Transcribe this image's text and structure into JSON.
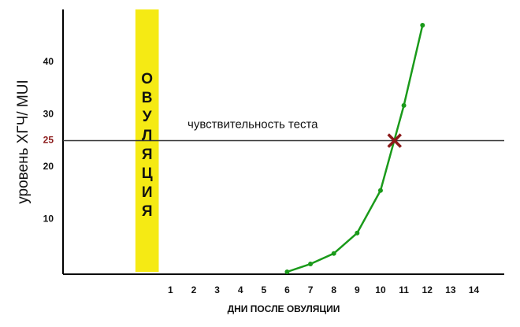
{
  "chart_data": {
    "type": "line",
    "y_label": "уровень ХГЧ/ MUI",
    "x_label": "ДНИ ПОСЛЕ ОВУЛЯЦИИ",
    "x": [
      6,
      7,
      8,
      9,
      10,
      11,
      11.8
    ],
    "series": [
      {
        "color": "#1a9a1a",
        "values": [
          0,
          1.5,
          3.5,
          7.4,
          15.5,
          31.7,
          47
        ]
      }
    ],
    "xlim": [
      -3.6,
      15.3
    ],
    "ylim": [
      0,
      50
    ],
    "xticks": [
      1,
      2,
      3,
      4,
      5,
      6,
      7,
      8,
      9,
      10,
      11,
      12,
      13,
      14
    ],
    "yticks": [
      10,
      20,
      25,
      30,
      40
    ],
    "grid": false,
    "threshold": {
      "value": 25,
      "label": "чувствительность теста",
      "color": "#8b1a1a",
      "cross_x": 10.6
    },
    "band": {
      "label": "ОВУЛЯЦИЯ",
      "xlim": [
        -0.5,
        0.5
      ],
      "color": "#f5ea14"
    }
  }
}
